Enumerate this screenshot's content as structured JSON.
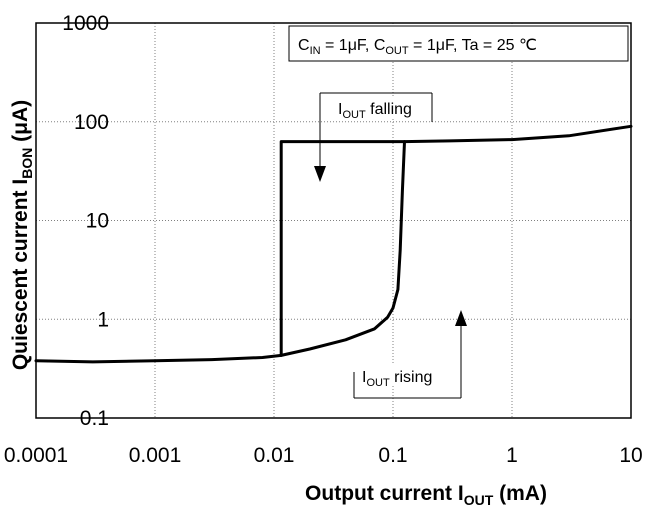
{
  "chart_data": {
    "type": "line",
    "xlabel": "Output current  I",
    "xlabel_sub": "OUT",
    "xlabel_unit": " (mA)",
    "ylabel": "Quiescent current  I",
    "ylabel_sub": "BON",
    "ylabel_unit": " (μA)",
    "x_scale": "log",
    "y_scale": "log",
    "xlim": [
      0.0001,
      10
    ],
    "ylim": [
      0.1,
      1000
    ],
    "x_ticks": [
      "0.0001",
      "0.001",
      "0.01",
      "0.1",
      "1",
      "10"
    ],
    "y_ticks": [
      "0.1",
      "1",
      "10",
      "100",
      "1000"
    ],
    "grid": "dotted",
    "conditions": {
      "cin_label": "C",
      "cin_sub": "IN",
      "cin_value": " = 1μF, ",
      "cout_label": "C",
      "cout_sub": "OUT",
      "cout_value": " = 1μF, Ta = 25 ℃"
    },
    "annotations": {
      "falling": {
        "label": "I",
        "sub": "OUT",
        "text": " falling"
      },
      "rising": {
        "label": "I",
        "sub": "OUT",
        "text": " rising"
      }
    },
    "series": [
      {
        "x": [
          0.0001,
          0.0003,
          0.001,
          0.003,
          0.008,
          0.0115,
          0.02,
          0.04,
          0.07,
          0.09,
          0.1,
          0.11,
          0.115,
          0.12,
          0.125,
          0.3,
          1,
          3,
          10
        ],
        "y": [
          0.38,
          0.37,
          0.38,
          0.39,
          0.41,
          0.43,
          0.5,
          0.62,
          0.8,
          1.05,
          1.3,
          2,
          5,
          20,
          63,
          64,
          66,
          72,
          90
        ]
      },
      {
        "x": [
          0.125,
          0.0115,
          0.0115
        ],
        "y": [
          63,
          63,
          0.43
        ]
      }
    ]
  }
}
